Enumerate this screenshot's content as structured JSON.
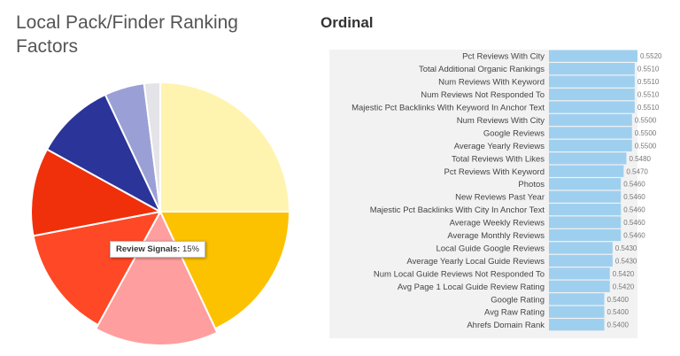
{
  "chart_data": [
    {
      "type": "pie",
      "title": "Local Pack/Finder Ranking Factors",
      "slices": [
        {
          "color": "#fff3b0",
          "value": 25
        },
        {
          "color": "#fcc200",
          "value": 18
        },
        {
          "color": "#ff9e9e",
          "value": 15
        },
        {
          "color": "#ff4826",
          "value": 14
        },
        {
          "color": "#f0300a",
          "value": 11
        },
        {
          "color": "#2b3499",
          "value": 10
        },
        {
          "color": "#9aa0d6",
          "value": 5
        },
        {
          "color": "#e3e3e8",
          "value": 2
        }
      ],
      "tooltip": {
        "label": "Review Signals:",
        "value": "15%"
      }
    },
    {
      "type": "bar",
      "title": "Ordinal",
      "categories": [
        "Pct Reviews With City",
        "Total Additional Organic Rankings",
        "Num Reviews With Keyword",
        "Num Reviews Not Responded To",
        "Majestic Pct Backlinks With Keyword In Anchor Text",
        "Num Reviews With City",
        "Google Reviews",
        "Average Yearly Reviews",
        "Total Reviews With Likes",
        "Pct Reviews With Keyword",
        "Photos",
        "New Reviews Past Year",
        "Majestic Pct Backlinks With City In Anchor Text",
        "Average Weekly Reviews",
        "Average Monthly Reviews",
        "Local Guide Google Reviews",
        "Average Yearly Local Guide Reviews",
        "Num Local Guide Reviews Not Responded To",
        "Avg Page 1 Local Guide Review Rating",
        "Google Rating",
        "Avg Raw Rating",
        "Ahrefs Domain Rank"
      ],
      "values": [
        0.552,
        0.551,
        0.551,
        0.551,
        0.551,
        0.55,
        0.55,
        0.55,
        0.548,
        0.547,
        0.546,
        0.546,
        0.546,
        0.546,
        0.546,
        0.543,
        0.543,
        0.542,
        0.542,
        0.54,
        0.54,
        0.54
      ],
      "value_labels": [
        "0.5520",
        "0.5510",
        "0.5510",
        "0.5510",
        "0.5510",
        "0.5500",
        "0.5500",
        "0.5500",
        "0.5480",
        "0.5470",
        "0.5460",
        "0.5460",
        "0.5460",
        "0.5460",
        "0.5460",
        "0.5430",
        "0.5430",
        "0.5420",
        "0.5420",
        "0.5400",
        "0.5400",
        "0.5400"
      ],
      "xlim": [
        0.52,
        0.552
      ],
      "bar_color": "#9fcfee",
      "row_background": "#f2f2f2"
    }
  ]
}
